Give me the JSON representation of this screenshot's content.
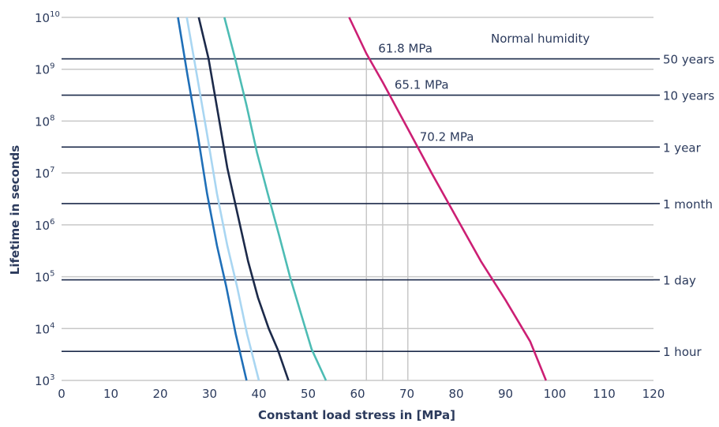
{
  "chart_data": {
    "type": "line",
    "xlabel": "Constant load stress in [MPa]",
    "ylabel": "Lifetime in seconds",
    "xlim": [
      0,
      120
    ],
    "ylim_log10": [
      3,
      10
    ],
    "y_scale": "log",
    "grid": true,
    "x_ticks": [
      "0",
      "10",
      "20",
      "30",
      "40",
      "50",
      "60",
      "70",
      "80",
      "90",
      "100",
      "110",
      "120"
    ],
    "y_ticks": [
      {
        "base": "10",
        "exp": "3"
      },
      {
        "base": "10",
        "exp": "4"
      },
      {
        "base": "10",
        "exp": "5"
      },
      {
        "base": "10",
        "exp": "6"
      },
      {
        "base": "10",
        "exp": "7"
      },
      {
        "base": "10",
        "exp": "8"
      },
      {
        "base": "10",
        "exp": "9"
      },
      {
        "base": "10",
        "exp": "10"
      }
    ],
    "series": [
      {
        "color": "#1f6fb8",
        "points": [
          [
            23.6,
            10
          ],
          [
            25.5,
            8.9
          ],
          [
            27.5,
            7.8
          ],
          [
            29.5,
            6.6
          ],
          [
            31.5,
            5.6
          ],
          [
            33.4,
            4.8
          ],
          [
            35.3,
            3.9
          ],
          [
            37.5,
            3
          ]
        ]
      },
      {
        "color": "#a9d6f2",
        "points": [
          [
            25.4,
            10
          ],
          [
            27.4,
            8.9
          ],
          [
            29.4,
            7.8
          ],
          [
            31.5,
            6.6
          ],
          [
            33.6,
            5.6
          ],
          [
            35.6,
            4.8
          ],
          [
            37.6,
            3.9
          ],
          [
            40.0,
            3
          ]
        ]
      },
      {
        "color": "#1c2a4a",
        "points": [
          [
            27.8,
            10
          ],
          [
            29.8,
            9.2
          ],
          [
            31.8,
            8.1
          ],
          [
            33.6,
            7.1
          ],
          [
            35.7,
            6.2
          ],
          [
            37.8,
            5.3
          ],
          [
            39.8,
            4.6
          ],
          [
            42.0,
            4.0
          ],
          [
            43.8,
            3.6
          ],
          [
            46.0,
            3
          ]
        ]
      },
      {
        "color": "#4dbcb4",
        "points": [
          [
            33.0,
            10
          ],
          [
            35.2,
            9.2
          ],
          [
            37.5,
            8.3
          ],
          [
            39.6,
            7.4
          ],
          [
            41.8,
            6.6
          ],
          [
            44.1,
            5.8
          ],
          [
            46.3,
            5.0
          ],
          [
            48.5,
            4.3
          ],
          [
            50.7,
            3.6
          ],
          [
            53.6,
            3
          ]
        ]
      },
      {
        "color": "#cc1f74",
        "points": [
          [
            58.3,
            10
          ],
          [
            61.8,
            9.3
          ],
          [
            65.1,
            8.75
          ],
          [
            70.2,
            7.85
          ],
          [
            75.0,
            7.0
          ],
          [
            80.0,
            6.15
          ],
          [
            85.0,
            5.3
          ],
          [
            90.0,
            4.55
          ],
          [
            95.0,
            3.75
          ],
          [
            98.2,
            3.0
          ]
        ]
      }
    ],
    "reference_lines": [
      {
        "label": "50 years",
        "log10": 9.2
      },
      {
        "label": "10 years",
        "log10": 8.5
      },
      {
        "label": "1 year",
        "log10": 7.5
      },
      {
        "label": "1 month",
        "log10": 6.41
      },
      {
        "label": "1 day",
        "log10": 4.94
      },
      {
        "label": "1 hour",
        "log10": 3.56
      }
    ],
    "annotations": [
      {
        "text": "61.8 MPa",
        "x": 61.8,
        "log10": 9.2
      },
      {
        "text": "65.1 MPa",
        "x": 65.1,
        "log10": 8.5
      },
      {
        "text": "70.2 MPa",
        "x": 70.2,
        "log10": 7.5
      }
    ],
    "note": "Normal humidity",
    "colors": {
      "reference_line": "#1c2a4a",
      "grid": "#c8c8c8",
      "text": "#2b3a5c"
    }
  }
}
